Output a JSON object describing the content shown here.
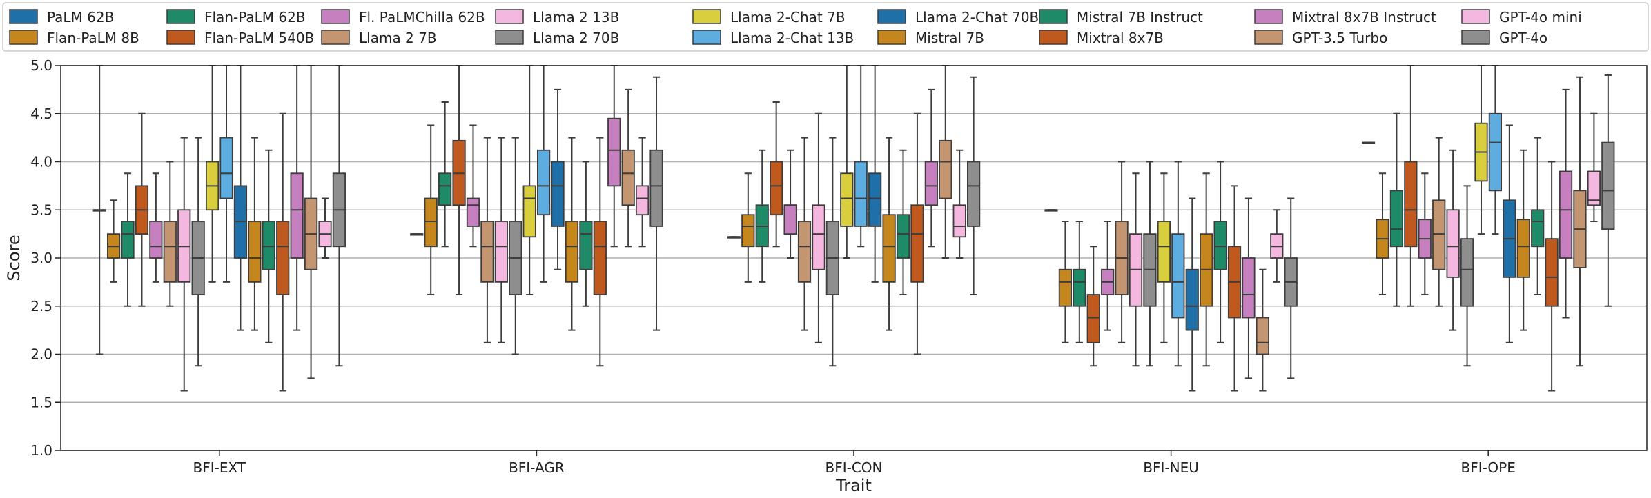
{
  "chart_data": {
    "type": "boxplot",
    "xlabel": "Trait",
    "ylabel": "Score",
    "ylim": [
      1.0,
      5.0
    ],
    "yticks": [
      "1.0",
      "1.5",
      "2.0",
      "2.5",
      "3.0",
      "3.5",
      "4.0",
      "4.5",
      "5.0"
    ],
    "grid": "horizontal",
    "legend_position": "top",
    "categories": [
      "BFI-EXT",
      "BFI-AGR",
      "BFI-CON",
      "BFI-NEU",
      "BFI-OPE"
    ],
    "series": [
      {
        "name": "PaLM 62B",
        "color": "#1f6fa8"
      },
      {
        "name": "Flan-PaLM 8B",
        "color": "#c5861d"
      },
      {
        "name": "Flan-PaLM 62B",
        "color": "#1f8a68"
      },
      {
        "name": "Flan-PaLM 540B",
        "color": "#c0591e"
      },
      {
        "name": "Fl. PaLMChilla 62B",
        "color": "#c67fbf"
      },
      {
        "name": "Llama 2 7B",
        "color": "#c39571"
      },
      {
        "name": "Llama 2 13B",
        "color": "#f4b8e0"
      },
      {
        "name": "Llama 2 70B",
        "color": "#8e8e8e"
      },
      {
        "name": "Llama 2-Chat 7B",
        "color": "#d9cf3e"
      },
      {
        "name": "Llama 2-Chat 13B",
        "color": "#5eade0"
      },
      {
        "name": "Llama 2-Chat 70B",
        "color": "#1f6fa8"
      },
      {
        "name": "Mistral 7B",
        "color": "#c5861d"
      },
      {
        "name": "Mistral 7B Instruct",
        "color": "#1f8a68"
      },
      {
        "name": "Mixtral 8x7B",
        "color": "#c0591e"
      },
      {
        "name": "Mixtral 8x7B Instruct",
        "color": "#c67fbf"
      },
      {
        "name": "GPT-3.5 Turbo",
        "color": "#c39571"
      },
      {
        "name": "GPT-4o mini",
        "color": "#f4b8e0"
      },
      {
        "name": "GPT-4o",
        "color": "#8e8e8e"
      }
    ],
    "boxes": [
      [
        [
          2.0,
          3.5,
          3.5,
          3.5,
          5.0
        ],
        [
          2.75,
          3.0,
          3.12,
          3.25,
          3.6
        ],
        [
          2.5,
          3.0,
          3.25,
          3.38,
          3.88
        ],
        [
          2.5,
          3.25,
          3.5,
          3.75,
          4.5
        ],
        [
          2.75,
          3.0,
          3.12,
          3.38,
          3.88
        ],
        [
          2.5,
          2.75,
          3.12,
          3.38,
          4.0
        ],
        [
          1.62,
          2.75,
          3.12,
          3.5,
          4.25
        ],
        [
          1.88,
          2.62,
          3.0,
          3.38,
          4.25
        ],
        [
          2.75,
          3.5,
          3.75,
          4.0,
          5.0
        ],
        [
          2.75,
          3.62,
          3.88,
          4.25,
          5.0
        ],
        [
          2.25,
          3.0,
          3.38,
          3.75,
          5.0
        ],
        [
          2.25,
          2.75,
          3.0,
          3.38,
          4.25
        ],
        [
          2.12,
          2.88,
          3.12,
          3.38,
          4.12
        ],
        [
          1.62,
          2.62,
          3.12,
          3.38,
          4.5
        ],
        [
          2.25,
          3.0,
          3.5,
          3.88,
          5.0
        ],
        [
          1.75,
          2.88,
          3.25,
          3.62,
          5.0
        ],
        [
          3.0,
          3.12,
          3.25,
          3.38,
          3.62
        ],
        [
          1.88,
          3.12,
          3.5,
          3.88,
          5.0
        ]
      ],
      [
        [
          3.25,
          3.25,
          3.25,
          3.25,
          3.25
        ],
        [
          2.62,
          3.12,
          3.38,
          3.62,
          4.38
        ],
        [
          3.12,
          3.55,
          3.75,
          3.88,
          4.62
        ],
        [
          2.62,
          3.55,
          3.88,
          4.22,
          5.0
        ],
        [
          3.12,
          3.33,
          3.55,
          3.62,
          4.38
        ],
        [
          2.12,
          2.75,
          3.12,
          3.38,
          4.25
        ],
        [
          2.12,
          2.75,
          3.12,
          3.38,
          4.25
        ],
        [
          2.0,
          2.62,
          3.0,
          3.38,
          4.25
        ],
        [
          2.62,
          3.22,
          3.62,
          3.75,
          5.0
        ],
        [
          2.75,
          3.45,
          3.75,
          4.12,
          5.0
        ],
        [
          2.88,
          3.33,
          3.75,
          4.0,
          4.75
        ],
        [
          2.25,
          2.75,
          3.12,
          3.38,
          4.25
        ],
        [
          2.5,
          2.88,
          3.25,
          3.38,
          4.0
        ],
        [
          1.88,
          2.62,
          3.12,
          3.38,
          4.25
        ],
        [
          3.12,
          3.75,
          4.12,
          4.45,
          5.0
        ],
        [
          3.12,
          3.55,
          3.88,
          4.12,
          4.75
        ],
        [
          3.12,
          3.45,
          3.62,
          3.75,
          4.25
        ],
        [
          2.25,
          3.33,
          3.75,
          4.12,
          4.88
        ]
      ],
      [
        [
          3.22,
          3.22,
          3.22,
          3.22,
          3.22
        ],
        [
          2.75,
          3.12,
          3.33,
          3.45,
          3.88
        ],
        [
          2.75,
          3.12,
          3.33,
          3.55,
          4.12
        ],
        [
          3.12,
          3.45,
          3.75,
          4.0,
          4.62
        ],
        [
          3.0,
          3.25,
          3.55,
          3.55,
          4.12
        ],
        [
          2.25,
          2.75,
          3.12,
          3.38,
          4.25
        ],
        [
          2.12,
          2.88,
          3.25,
          3.55,
          4.5
        ],
        [
          1.88,
          2.62,
          3.0,
          3.38,
          4.25
        ],
        [
          3.0,
          3.33,
          3.62,
          3.88,
          5.0
        ],
        [
          3.12,
          3.33,
          3.62,
          4.0,
          5.0
        ],
        [
          2.75,
          3.33,
          3.62,
          3.88,
          5.0
        ],
        [
          2.25,
          2.75,
          3.12,
          3.45,
          4.25
        ],
        [
          2.62,
          3.0,
          3.25,
          3.45,
          4.12
        ],
        [
          2.0,
          2.75,
          3.25,
          3.55,
          4.5
        ],
        [
          3.12,
          3.55,
          3.75,
          4.0,
          4.75
        ],
        [
          3.0,
          3.62,
          4.0,
          4.22,
          5.0
        ],
        [
          3.0,
          3.22,
          3.33,
          3.55,
          4.12
        ],
        [
          2.62,
          3.33,
          3.75,
          4.0,
          4.88
        ]
      ],
      [
        [
          3.5,
          3.5,
          3.5,
          3.5,
          3.5
        ],
        [
          2.12,
          2.5,
          2.75,
          2.88,
          3.38
        ],
        [
          2.12,
          2.5,
          2.75,
          2.88,
          3.38
        ],
        [
          1.88,
          2.12,
          2.38,
          2.62,
          3.12
        ],
        [
          2.25,
          2.62,
          2.75,
          2.88,
          3.38
        ],
        [
          2.12,
          2.62,
          3.0,
          3.38,
          4.0
        ],
        [
          1.88,
          2.5,
          2.88,
          3.25,
          3.88
        ],
        [
          1.88,
          2.5,
          2.88,
          3.25,
          4.0
        ],
        [
          2.12,
          2.75,
          3.12,
          3.38,
          3.88
        ],
        [
          1.88,
          2.38,
          2.75,
          3.25,
          4.0
        ],
        [
          1.62,
          2.25,
          2.5,
          2.88,
          3.62
        ],
        [
          1.88,
          2.5,
          2.88,
          3.25,
          3.88
        ],
        [
          2.12,
          2.88,
          3.12,
          3.38,
          4.0
        ],
        [
          1.62,
          2.38,
          2.75,
          3.12,
          3.75
        ],
        [
          1.75,
          2.38,
          2.62,
          3.0,
          3.62
        ],
        [
          1.62,
          2.0,
          2.12,
          2.38,
          2.88
        ],
        [
          2.75,
          3.0,
          3.12,
          3.25,
          3.5
        ],
        [
          1.75,
          2.5,
          2.75,
          3.0,
          3.62
        ]
      ],
      [
        [
          4.2,
          4.2,
          4.2,
          4.2,
          4.2
        ],
        [
          2.62,
          3.0,
          3.2,
          3.4,
          3.88
        ],
        [
          2.5,
          3.12,
          3.3,
          3.7,
          4.5
        ],
        [
          2.5,
          3.12,
          3.5,
          4.0,
          5.0
        ],
        [
          2.62,
          3.0,
          3.2,
          3.4,
          3.88
        ],
        [
          2.5,
          2.88,
          3.25,
          3.6,
          4.25
        ],
        [
          2.25,
          2.8,
          3.12,
          3.5,
          4.12
        ],
        [
          1.88,
          2.5,
          2.88,
          3.2,
          3.75
        ],
        [
          3.25,
          3.8,
          4.1,
          4.4,
          5.0
        ],
        [
          3.25,
          3.7,
          4.2,
          4.5,
          5.0
        ],
        [
          2.12,
          2.8,
          3.2,
          3.6,
          4.38
        ],
        [
          2.25,
          2.8,
          3.12,
          3.4,
          4.12
        ],
        [
          2.62,
          3.12,
          3.38,
          3.5,
          4.25
        ],
        [
          1.62,
          2.5,
          2.8,
          3.2,
          4.0
        ],
        [
          2.38,
          3.0,
          3.5,
          3.9,
          4.75
        ],
        [
          1.88,
          2.9,
          3.3,
          3.7,
          4.88
        ],
        [
          3.38,
          3.55,
          3.6,
          3.9,
          4.5
        ],
        [
          2.5,
          3.3,
          3.7,
          4.2,
          4.9
        ]
      ]
    ]
  }
}
